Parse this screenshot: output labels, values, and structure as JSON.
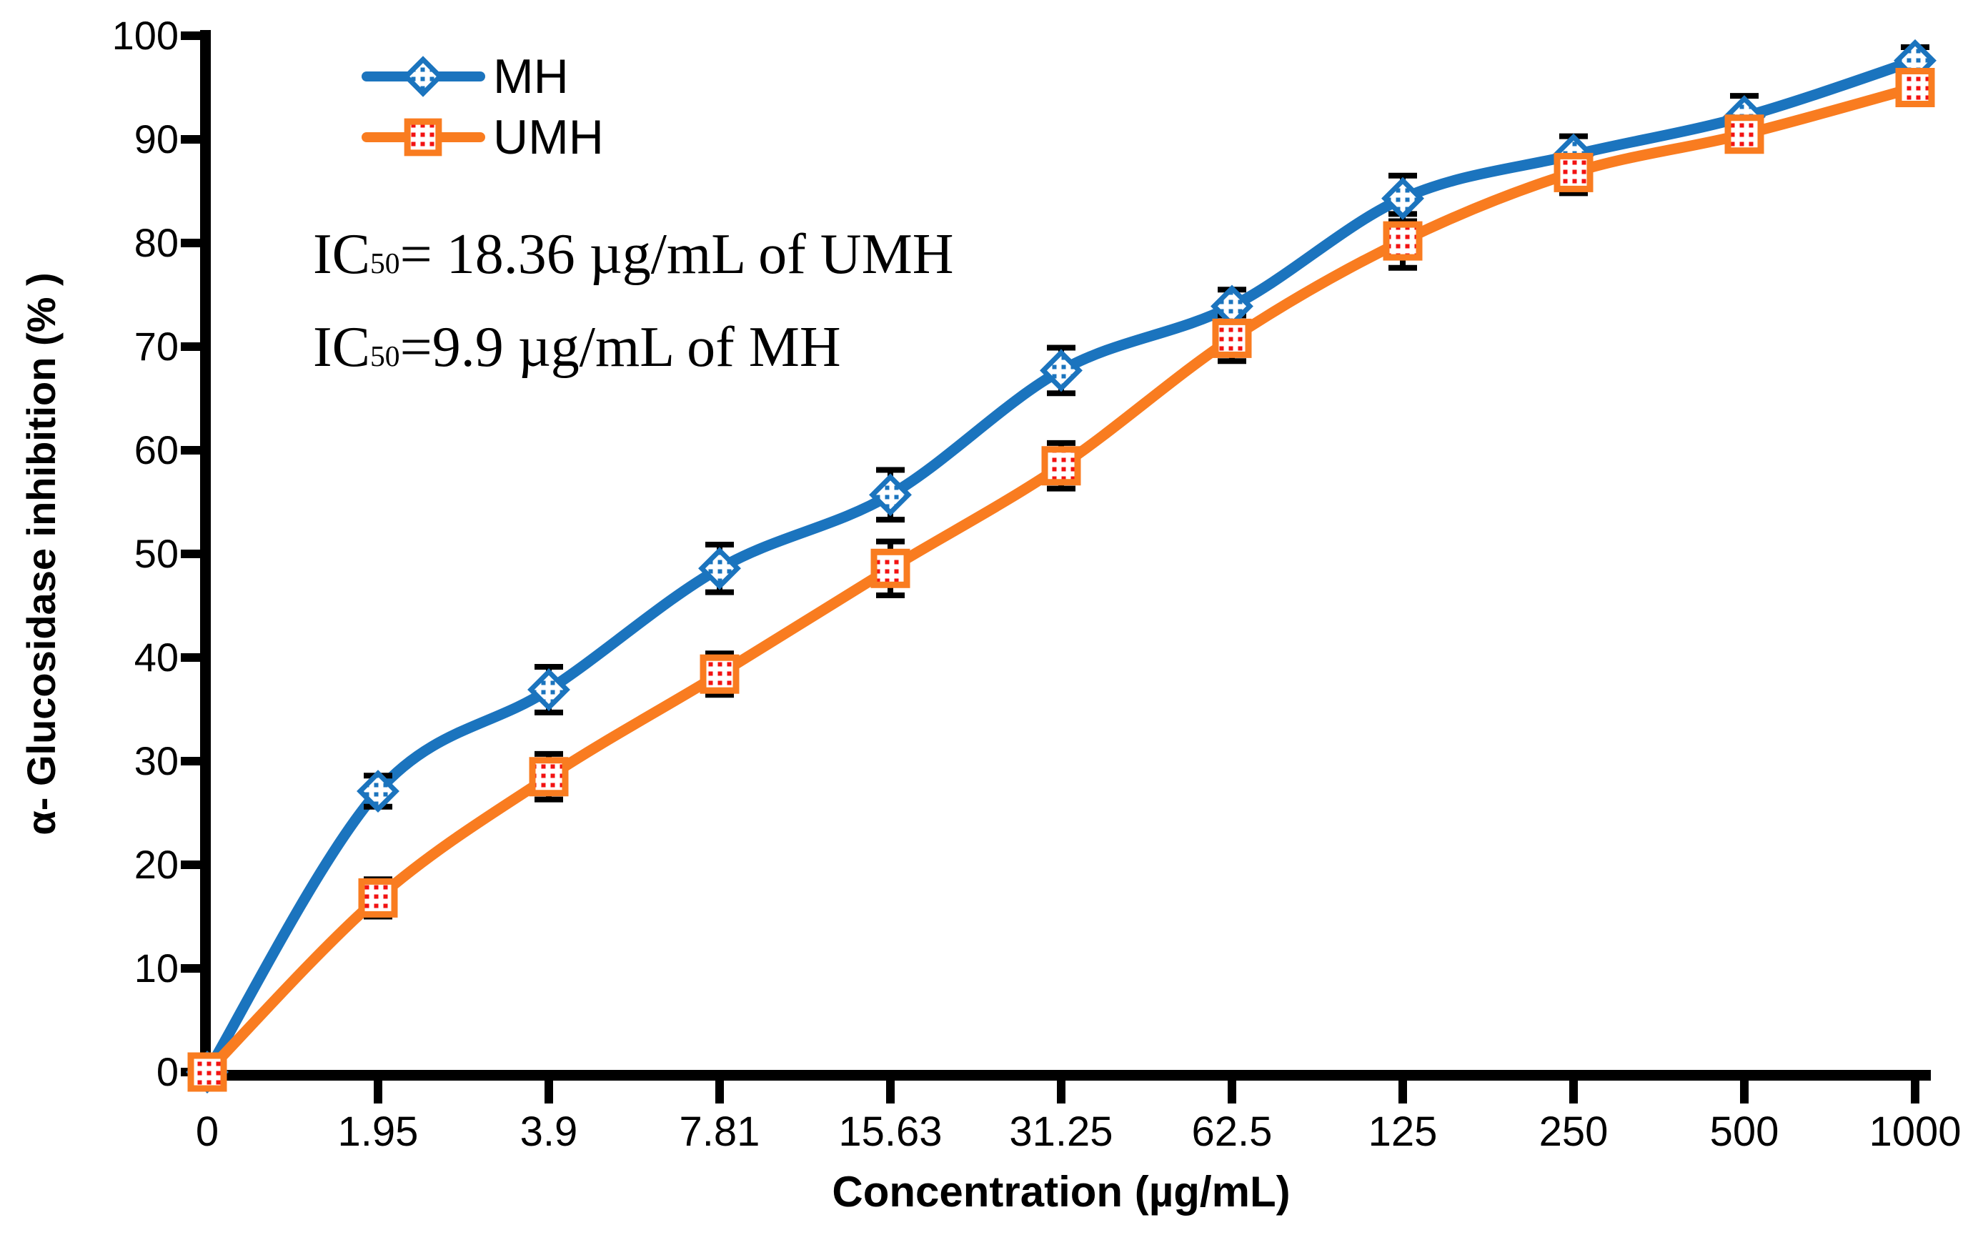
{
  "chart_data": {
    "type": "line",
    "title": "",
    "xlabel": "Concentration (µg/mL)",
    "ylabel": "α- Glucosidase inhibition (% )",
    "categories": [
      "0",
      "1.95",
      "3.9",
      "7.81",
      "15.63",
      "31.25",
      "62.5",
      "125",
      "250",
      "500",
      "1000"
    ],
    "y_ticks": [
      0,
      10,
      20,
      30,
      40,
      50,
      60,
      70,
      80,
      90,
      100
    ],
    "ylim": [
      0,
      100
    ],
    "grid": false,
    "legend_position": "top-left-inside",
    "series": [
      {
        "name": "MH",
        "marker": "diamond",
        "line_color": "#1B74BE",
        "dot_color": "#1B74BE",
        "values": [
          0,
          27.1,
          36.9,
          48.6,
          55.7,
          67.7,
          73.9,
          84.3,
          88.5,
          92.2,
          97.6
        ],
        "errors": [
          0,
          1.5,
          2.2,
          2.3,
          2.4,
          2.2,
          1.6,
          2.2,
          1.8,
          2.0,
          1.3
        ]
      },
      {
        "name": "UMH",
        "marker": "square",
        "line_color": "#F97C20",
        "dot_color": "#F21212",
        "values": [
          0,
          16.8,
          28.5,
          38.4,
          48.6,
          58.5,
          70.8,
          80.2,
          86.8,
          90.5,
          95.0
        ],
        "errors": [
          0,
          1.8,
          2.2,
          2.0,
          2.6,
          2.2,
          2.2,
          2.6,
          2.0,
          1.6,
          1.5
        ]
      }
    ],
    "annotations": [
      {
        "prefix": "IC",
        "sub": "50",
        "rest": "= 18.36 µg/mL of UMH"
      },
      {
        "prefix": "IC",
        "sub": "50",
        "rest": "=9.9 µg/mL of MH"
      }
    ],
    "axis_color": "#000000",
    "error_bar_color": "#000000"
  }
}
